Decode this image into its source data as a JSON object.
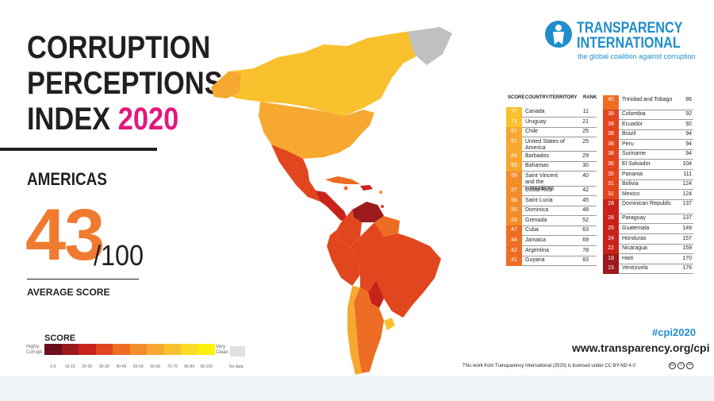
{
  "title": {
    "line1": "CORRUPTION",
    "line2": "PERCEPTIONS",
    "line3_text": "INDEX ",
    "year": "2020"
  },
  "region": "AMERICAS",
  "average": {
    "score": "43",
    "out_of": "/100",
    "label": "AVERAGE SCORE"
  },
  "legend": {
    "title": "SCORE",
    "low_label": [
      "Highly",
      "Corrupt"
    ],
    "high_label": [
      "Very",
      "Clean"
    ],
    "no_data": "No data",
    "ranges": [
      "0-9",
      "10-19",
      "20-29",
      "30-39",
      "40-49",
      "50-59",
      "60-69",
      "70-79",
      "80-89",
      "90-100"
    ],
    "colors": [
      "#6d0f1c",
      "#9b1a1b",
      "#c8231b",
      "#e2461e",
      "#ee6d24",
      "#f38c2b",
      "#f6a830",
      "#f9c12e",
      "#fbdc28",
      "#fdf10f"
    ],
    "no_data_color": "#e0e0e0"
  },
  "brand": {
    "line1": "TRANSPARENCY",
    "line2": "INTERNATIONAL",
    "tagline": "the global coalition against corruption"
  },
  "hashtag": "#cpi2020",
  "url": "www.transparency.org/cpi",
  "license": "This work from Transparency International (2020) is licensed under CC BY-ND 4.0",
  "table_headers": {
    "score": "SCORE",
    "country": "COUNTRY/TERRITORY",
    "rank": "RANK"
  },
  "map_colors": {
    "land": "#c0c0c0"
  },
  "chart_data": {
    "type": "table",
    "title": "CORRUPTION PERCEPTIONS INDEX 2020",
    "subtitle": "AMERICAS",
    "columns": [
      "SCORE",
      "COUNTRY/TERRITORY",
      "RANK"
    ],
    "rows": [
      {
        "score": 77,
        "country": "Canada",
        "rank": 11
      },
      {
        "score": 71,
        "country": "Uruguay",
        "rank": 21
      },
      {
        "score": 67,
        "country": "Chile",
        "rank": 25
      },
      {
        "score": 67,
        "country": "United States of America",
        "rank": 25
      },
      {
        "score": 64,
        "country": "Barbados",
        "rank": 29
      },
      {
        "score": 63,
        "country": "Bahamas",
        "rank": 30
      },
      {
        "score": 59,
        "country": "Saint Vincent and the Grenadines",
        "rank": 40
      },
      {
        "score": 57,
        "country": "Costa Rica",
        "rank": 42
      },
      {
        "score": 56,
        "country": "Saint Lucia",
        "rank": 45
      },
      {
        "score": 55,
        "country": "Dominica",
        "rank": 48
      },
      {
        "score": 53,
        "country": "Grenada",
        "rank": 52
      },
      {
        "score": 47,
        "country": "Cuba",
        "rank": 63
      },
      {
        "score": 44,
        "country": "Jamaica",
        "rank": 69
      },
      {
        "score": 42,
        "country": "Argentina",
        "rank": 78
      },
      {
        "score": 41,
        "country": "Guyana",
        "rank": 83
      },
      {
        "score": 40,
        "country": "Trinidad and Tobago",
        "rank": 86
      },
      {
        "score": 39,
        "country": "Colombia",
        "rank": 92
      },
      {
        "score": 39,
        "country": "Ecuador",
        "rank": 92
      },
      {
        "score": 38,
        "country": "Brazil",
        "rank": 94
      },
      {
        "score": 38,
        "country": "Peru",
        "rank": 94
      },
      {
        "score": 38,
        "country": "Suriname",
        "rank": 94
      },
      {
        "score": 36,
        "country": "El Salvador",
        "rank": 104
      },
      {
        "score": 35,
        "country": "Panama",
        "rank": 111
      },
      {
        "score": 31,
        "country": "Bolivia",
        "rank": 124
      },
      {
        "score": 31,
        "country": "Mexico",
        "rank": 124
      },
      {
        "score": 28,
        "country": "Dominican Republic",
        "rank": 137
      },
      {
        "score": 28,
        "country": "Paraguay",
        "rank": 137
      },
      {
        "score": 25,
        "country": "Guatemala",
        "rank": 149
      },
      {
        "score": 24,
        "country": "Honduras",
        "rank": 157
      },
      {
        "score": 22,
        "country": "Nicaragua",
        "rank": 159
      },
      {
        "score": 18,
        "country": "Haiti",
        "rank": 170
      },
      {
        "score": 15,
        "country": "Venezuela",
        "rank": 176
      }
    ]
  }
}
